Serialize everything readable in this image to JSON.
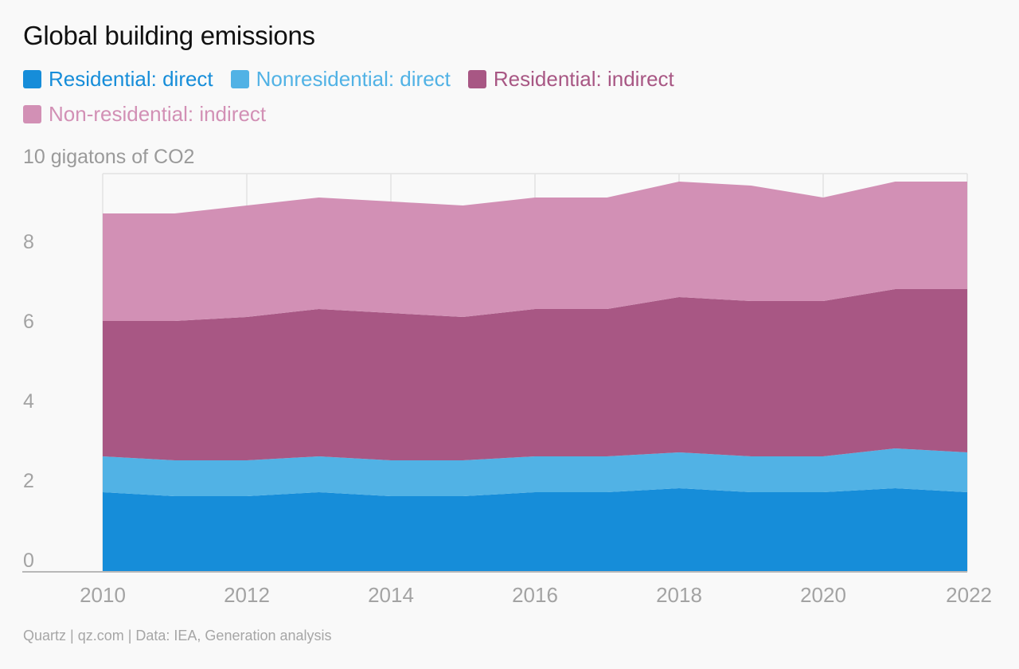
{
  "title": "Global building emissions",
  "unit_label": "10 gigatons of CO2",
  "footer": "Quartz | qz.com | Data: IEA, Generation analysis",
  "chart_data": {
    "type": "area",
    "stacked": true,
    "title": "Global building emissions",
    "ylabel": "10 gigatons of CO2",
    "x": [
      2010,
      2011,
      2012,
      2013,
      2014,
      2015,
      2016,
      2017,
      2018,
      2019,
      2020,
      2021,
      2022
    ],
    "xlim": [
      2010,
      2022
    ],
    "ylim": [
      0,
      10
    ],
    "x_ticks": [
      "2010",
      "2012",
      "2014",
      "2016",
      "2018",
      "2020",
      "2022"
    ],
    "y_ticks": [
      "0",
      "2",
      "4",
      "6",
      "8"
    ],
    "grid": true,
    "legend_position": "top",
    "series": [
      {
        "name": "Residential: direct",
        "color": "#168dd9",
        "values": [
          2.0,
          1.9,
          1.9,
          2.0,
          1.9,
          1.9,
          2.0,
          2.0,
          2.1,
          2.0,
          2.0,
          2.1,
          2.0
        ]
      },
      {
        "name": "Nonresidential: direct",
        "color": "#51b2e5",
        "values": [
          0.9,
          0.9,
          0.9,
          0.9,
          0.9,
          0.9,
          0.9,
          0.9,
          0.9,
          0.9,
          0.9,
          1.0,
          1.0
        ]
      },
      {
        "name": "Residential: indirect",
        "color": "#a85784",
        "values": [
          3.4,
          3.5,
          3.6,
          3.7,
          3.7,
          3.6,
          3.7,
          3.7,
          3.9,
          3.9,
          3.9,
          4.0,
          4.1
        ]
      },
      {
        "name": "Non-residential: indirect",
        "color": "#d290b5",
        "values": [
          2.7,
          2.7,
          2.8,
          2.8,
          2.8,
          2.8,
          2.8,
          2.8,
          2.9,
          2.9,
          2.6,
          2.7,
          2.7
        ]
      }
    ]
  }
}
